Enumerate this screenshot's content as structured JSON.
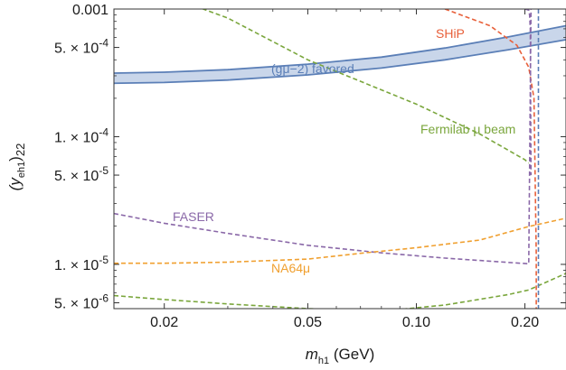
{
  "chart_data": {
    "type": "line",
    "x_scale": "log",
    "y_scale": "log",
    "xlim": [
      0.0145,
      0.26
    ],
    "ylim": [
      4.5e-06,
      0.001
    ],
    "grid": false,
    "legend": "none",
    "xlabel": {
      "main": "m",
      "sub": "h1",
      "unit": "(GeV)"
    },
    "ylabel": {
      "open": "(y",
      "sub": "eh1",
      "close": ")",
      "tail": "22"
    },
    "x_ticks": [
      {
        "value": 0.02,
        "label": "0.02"
      },
      {
        "value": 0.05,
        "label": "0.05"
      },
      {
        "value": 0.1,
        "label": "0.10"
      },
      {
        "value": 0.2,
        "label": "0.20"
      }
    ],
    "y_ticks": [
      {
        "value": 0.001,
        "label": "0.001"
      },
      {
        "value": 0.0005,
        "label": "5. × 10^-4"
      },
      {
        "value": 0.0001,
        "label": "1. × 10^-4"
      },
      {
        "value": 5e-05,
        "label": "5. × 10^-5"
      },
      {
        "value": 1e-05,
        "label": "1. × 10^-5"
      },
      {
        "value": 5e-06,
        "label": "5. × 10^-6"
      }
    ],
    "band": {
      "label": "(gμ−2) favored",
      "color": "#5b7fb7",
      "fill": "#c9d6ea",
      "x": [
        0.0145,
        0.02,
        0.03,
        0.05,
        0.08,
        0.12,
        0.18,
        0.26
      ],
      "upper": [
        0.000315,
        0.00032,
        0.000335,
        0.00037,
        0.00042,
        0.000495,
        0.000605,
        0.00074
      ],
      "lower": [
        0.000262,
        0.000266,
        0.000278,
        0.000305,
        0.000345,
        0.0004,
        0.00048,
        0.000575
      ]
    },
    "series": [
      {
        "name": "SHiP",
        "color": "#e8603a",
        "x": [
          0.12,
          0.16,
          0.19,
          0.205,
          0.212,
          0.215,
          0.215
        ],
        "y": [
          0.001,
          0.00074,
          0.00052,
          0.00035,
          0.0002,
          1.2e-05,
          4.5e-06
        ]
      },
      {
        "name": "Fermilab μ beam",
        "color": "#7aa63c",
        "x": [
          0.0145,
          0.03,
          0.05,
          0.1,
          0.15,
          0.2,
          0.205
        ],
        "y": [
          0.0018,
          0.00085,
          0.0004,
          0.00018,
          0.000105,
          6.6e-05,
          6.2e-05
        ]
      },
      {
        "name": "",
        "color": "#7aa63c",
        "x": [
          0.0145,
          0.02,
          0.03,
          0.05,
          0.08,
          0.12,
          0.18,
          0.205,
          0.26
        ],
        "y": [
          5.7e-06,
          5.3e-06,
          4.9e-06,
          4.5e-06,
          4.3e-06,
          4.8e-06,
          5.8e-06,
          6.3e-06,
          8.5e-06
        ]
      },
      {
        "name": "FASER",
        "color": "#8a68a8",
        "x": [
          0.0145,
          0.02,
          0.03,
          0.05,
          0.08,
          0.12,
          0.16,
          0.205,
          0.208,
          0.208
        ],
        "y": [
          2.5e-05,
          2.1e-05,
          1.75e-05,
          1.41e-05,
          1.23e-05,
          1.12e-05,
          1.06e-05,
          1.01e-05,
          0.001,
          0.001
        ]
      },
      {
        "name": "",
        "color": "#8a68a8",
        "x": [
          0.2,
          0.205,
          0.206,
          0.207,
          0.208
        ],
        "y": [
          0.001,
          0.00098,
          0.0009,
          0.0007,
          5e-05
        ]
      },
      {
        "name": "",
        "color": "#5b7fb7",
        "x": [
          0.218,
          0.218
        ],
        "y": [
          0.001,
          4.5e-06
        ]
      },
      {
        "name": "NA64μ",
        "color": "#f0a030",
        "x": [
          0.0145,
          0.02,
          0.03,
          0.05,
          0.07,
          0.1,
          0.15,
          0.205,
          0.26
        ],
        "y": [
          1.02e-05,
          1.02e-05,
          1.04e-05,
          1.1e-05,
          1.22e-05,
          1.35e-05,
          1.55e-05,
          1.98e-05,
          2.3e-05
        ]
      }
    ],
    "annotations": [
      {
        "text": "SHiP",
        "color": "#e8603a"
      },
      {
        "text": "Fermilab μ beam",
        "color": "#7aa63c"
      },
      {
        "text": "FASER",
        "color": "#8a68a8"
      },
      {
        "text": "NA64μ",
        "color": "#f0a030"
      },
      {
        "text": "(gμ−2) favored",
        "color": "#5b7fb7"
      }
    ]
  }
}
